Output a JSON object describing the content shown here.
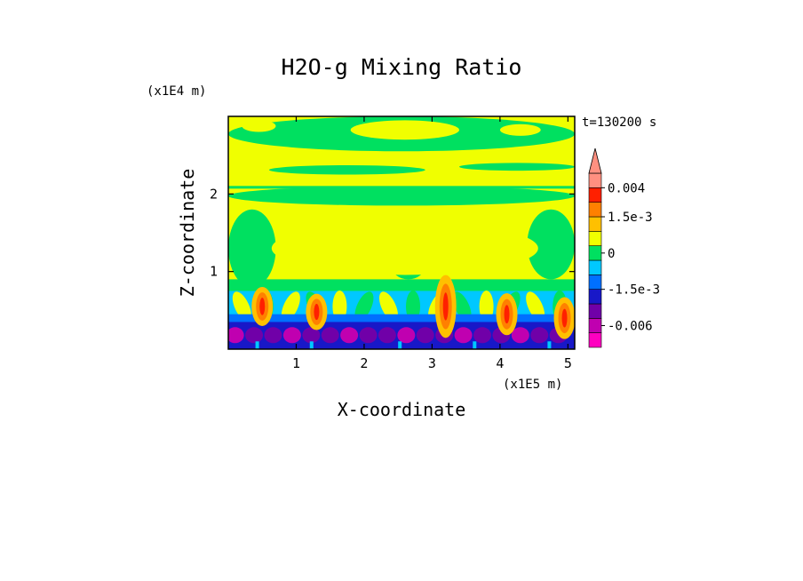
{
  "chart_data": {
    "type": "heatmap",
    "title": "H2O-g Mixing Ratio",
    "xlabel": "X-coordinate",
    "ylabel": "Z-coordinate",
    "x_scale_label": "(x1E5 m)",
    "y_scale_label": "(x1E4 m)",
    "time_label": "t=130200 s",
    "x_ticks": [
      "1",
      "2",
      "3",
      "4",
      "5"
    ],
    "y_ticks": [
      "1",
      "2"
    ],
    "x_tick_values": [
      1,
      2,
      3,
      4,
      5
    ],
    "y_tick_values": [
      1,
      2
    ],
    "xlim": [
      0,
      5.1
    ],
    "ylim": [
      0,
      3.0
    ],
    "colorbar": {
      "colors": [
        "#ff00c0",
        "#c000b0",
        "#7000a8",
        "#1818c8",
        "#0070ff",
        "#00c8ff",
        "#00e060",
        "#f0ff00",
        "#ffc000",
        "#ff8000",
        "#ff2000",
        "#ff9080"
      ],
      "tick_labels": [
        "0.004",
        "1.5e-3",
        "0",
        "-1.5e-3",
        "-0.006"
      ],
      "tick_band_index": [
        11,
        9,
        6.5,
        4,
        1.5
      ]
    },
    "field_description_bands": [
      {
        "z_range": [
          0,
          0.25
        ],
        "dominant": "purple/blue"
      },
      {
        "z_range": [
          0.25,
          0.9
        ],
        "dominant": "cyan/green with orange plumes"
      },
      {
        "z_range": [
          0.9,
          3.0
        ],
        "dominant": "yellow/green"
      }
    ]
  }
}
